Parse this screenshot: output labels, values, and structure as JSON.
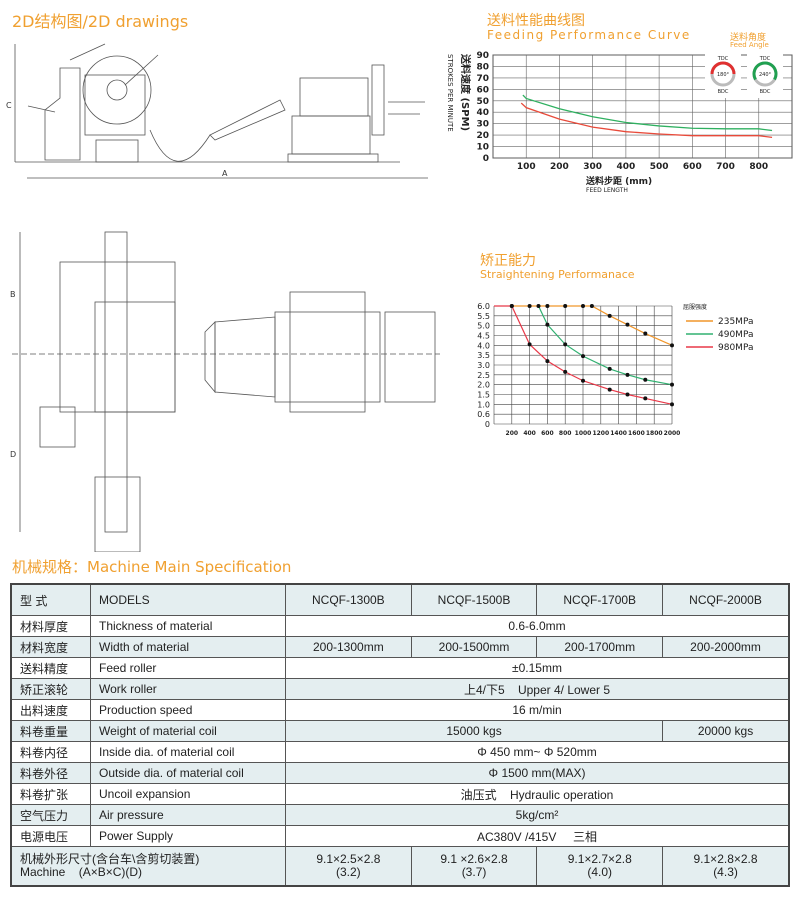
{
  "drawings": {
    "title": "2D结构图/2D drawings",
    "dimension_labels": {
      "a": "A",
      "b": "B",
      "c": "C",
      "d": "D"
    }
  },
  "feeding_chart_header": {
    "title_zh": "送料性能曲线图",
    "title_en": "Feeding Performance Curve",
    "feed_angle_zh": "送料角度",
    "feed_angle_en": "Feed Angle",
    "gauges": [
      {
        "top": "TDC",
        "bottom": "BDC",
        "angle": "180°",
        "color": "#e03030"
      },
      {
        "top": "TDC",
        "bottom": "BDC",
        "angle": "240°",
        "color": "#20a050"
      }
    ]
  },
  "straightening_header": {
    "title_zh": "矫正能力",
    "title_en": "Straightening Performanace",
    "legend_title": "屈服强度"
  },
  "chart_data": [
    {
      "type": "line",
      "title": "Feeding Performance Curve",
      "xlabel_zh": "送料步距 (mm)",
      "xlabel": "FEED LENGTH",
      "ylabel_zh": "送料速度 (SPM)",
      "ylabel": "STROKES PER MINUTE",
      "xlim": [
        0,
        900
      ],
      "ylim": [
        0,
        90
      ],
      "x_ticks": [
        "100",
        "200",
        "300",
        "400",
        "500",
        "600",
        "700",
        "800"
      ],
      "y_ticks": [
        "0",
        "10",
        "20",
        "30",
        "40",
        "50",
        "60",
        "70",
        "80",
        "90"
      ],
      "grid": true,
      "series": [
        {
          "color": "#2fb060",
          "x": [
            90,
            100,
            200,
            300,
            400,
            500,
            600,
            700,
            800,
            840
          ],
          "y": [
            55,
            52,
            43,
            36,
            31,
            28,
            26,
            25.5,
            25.5,
            24
          ]
        },
        {
          "color": "#e84a3a",
          "x": [
            85,
            100,
            200,
            300,
            400,
            500,
            600,
            700,
            800,
            840
          ],
          "y": [
            48,
            44,
            34,
            27,
            23,
            21,
            19.5,
            19.5,
            19.5,
            18
          ]
        }
      ]
    },
    {
      "type": "line",
      "title": "Straightening Performanace",
      "xlim": [
        0,
        2000
      ],
      "ylim": [
        0,
        6
      ],
      "x_ticks": [
        "200",
        "400",
        "600",
        "800",
        "1000",
        "1200",
        "1400",
        "1600",
        "1800",
        "2000"
      ],
      "y_ticks": [
        "0",
        "0.6",
        "1.0",
        "1.5",
        "2.0",
        "2.5",
        "3.0",
        "3.5",
        "4.0",
        "4.5",
        "5.0",
        "5.5",
        "6.0"
      ],
      "grid": true,
      "legend": "right",
      "series": [
        {
          "name": "235MPa",
          "color": "#f0962a",
          "x": [
            200,
            400,
            600,
            800,
            1000,
            1100,
            1300,
            1500,
            1700,
            2000
          ],
          "y": [
            6,
            6,
            6,
            6,
            6,
            6,
            5.5,
            5.05,
            4.6,
            4.0
          ]
        },
        {
          "name": "490MPa",
          "color": "#30b070",
          "x": [
            500,
            600,
            800,
            1000,
            1300,
            1500,
            1700,
            2000
          ],
          "y": [
            6,
            5.05,
            4.05,
            3.45,
            2.8,
            2.5,
            2.25,
            2.0
          ]
        },
        {
          "name": "980MPa",
          "color": "#e83848",
          "x": [
            0,
            200,
            400,
            600,
            800,
            1000,
            1300,
            1500,
            1700,
            2000
          ],
          "y": [
            6,
            6,
            4.05,
            3.2,
            2.65,
            2.2,
            1.75,
            1.5,
            1.3,
            1.0
          ]
        }
      ]
    }
  ],
  "spec": {
    "title": "机械规格：Machine Main Specification",
    "header": {
      "zh": "型  式",
      "en": "MODELS",
      "models": [
        "NCQF-1300B",
        "NCQF-1500B",
        "NCQF-1700B",
        "NCQF-2000B"
      ]
    },
    "rows": [
      {
        "zh": "材料厚度",
        "en": "Thickness of material",
        "values": [
          "0.6-6.0mm"
        ]
      },
      {
        "zh": "材料宽度",
        "en": "Width of material",
        "values": [
          "200-1300mm",
          "200-1500mm",
          "200-1700mm",
          "200-2000mm"
        ]
      },
      {
        "zh": "送料精度",
        "en": "Feed roller",
        "values": [
          "±0.15mm"
        ]
      },
      {
        "zh": "矫正滚轮",
        "en": "Work roller",
        "values": [
          "上4/下5    Upper 4/ Lower 5"
        ]
      },
      {
        "zh": "出料速度",
        "en": "Production speed",
        "values": [
          "16 m/min"
        ]
      },
      {
        "zh": "料卷重量",
        "en": "Weight of material coil",
        "values": [
          "15000 kgs",
          "20000 kgs"
        ]
      },
      {
        "zh": "料卷内径",
        "en": "Inside dia. of material coil",
        "values": [
          "Φ 450 mm~ Φ 520mm"
        ]
      },
      {
        "zh": "料卷外径",
        "en": "Outside dia. of material coil",
        "values": [
          "Φ 1500 mm(MAX)"
        ]
      },
      {
        "zh": "料卷扩张",
        "en": "Uncoil expansion",
        "values": [
          "油压式    Hydraulic operation"
        ]
      },
      {
        "zh": "空气压力",
        "en": "Air pressure",
        "values": [
          "5kg/cm²"
        ]
      },
      {
        "zh": "电源电压",
        "en": "Power Supply",
        "values": [
          "AC380V /415V     三相"
        ]
      }
    ],
    "last_row": {
      "zh": "机械外形尺寸(含台车\\含剪切装置)",
      "en": "Machine    (A×B×C)(D)",
      "values": [
        [
          "9.1×2.5×2.8",
          "(3.2)"
        ],
        [
          "9.1 ×2.6×2.8",
          "(3.7)"
        ],
        [
          "9.1×2.7×2.8",
          "(4.0)"
        ],
        [
          "9.1×2.8×2.8",
          "(4.3)"
        ]
      ]
    }
  }
}
